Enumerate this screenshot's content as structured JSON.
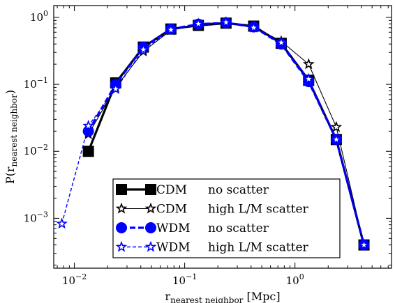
{
  "chart_data": {
    "type": "line",
    "xscale": "log",
    "yscale": "log",
    "xlim": [
      0.0065,
      7.5
    ],
    "ylim": [
      0.00018,
      1.5
    ],
    "xlabel": {
      "main": "r",
      "sub": "nearest neighbor",
      "tail": " [Mpc]"
    },
    "ylabel": {
      "main": "P(r",
      "sub": "nearest neighbor",
      "tail": ")"
    },
    "x_ticks": [
      {
        "value": 0.01,
        "base": "10",
        "exp": "−2"
      },
      {
        "value": 0.1,
        "base": "10",
        "exp": "−1"
      },
      {
        "value": 1,
        "base": "10",
        "exp": "0"
      }
    ],
    "y_ticks": [
      {
        "value": 0.001,
        "base": "10",
        "exp": "−3"
      },
      {
        "value": 0.01,
        "base": "10",
        "exp": "−2"
      },
      {
        "value": 0.1,
        "base": "10",
        "exp": "−1"
      },
      {
        "value": 1,
        "base": "10",
        "exp": "0"
      }
    ],
    "legend_position": "bottom-center",
    "series": [
      {
        "name": "CDM   no scatter",
        "color": "#000000",
        "marker": "square",
        "line": "solid-thick",
        "x": [
          0.0134,
          0.0237,
          0.0422,
          0.075,
          0.133,
          0.237,
          0.422,
          0.75,
          1.33,
          2.37,
          4.22
        ],
        "y": [
          0.01,
          0.105,
          0.36,
          0.67,
          0.76,
          0.82,
          0.74,
          0.41,
          0.115,
          0.015,
          0.0004
        ]
      },
      {
        "name": "CDM   high L/M scatter",
        "color": "#000000",
        "marker": "star",
        "line": "solid-thin",
        "x": [
          0.0134,
          0.0237,
          0.0422,
          0.075,
          0.133,
          0.237,
          0.422,
          0.75,
          1.33,
          2.37,
          4.22
        ],
        "y": [
          0.018,
          0.09,
          0.31,
          0.64,
          0.79,
          0.84,
          0.72,
          0.44,
          0.2,
          0.023,
          0.0004
        ]
      },
      {
        "name": "WDM   no scatter",
        "color": "#0000ff",
        "marker": "circle",
        "line": "dashed-thick",
        "x": [
          0.0134,
          0.0237,
          0.0422,
          0.075,
          0.133,
          0.237,
          0.422,
          0.75,
          1.33,
          2.37,
          4.22
        ],
        "y": [
          0.02,
          0.1,
          0.36,
          0.67,
          0.79,
          0.83,
          0.72,
          0.4,
          0.11,
          0.015,
          0.0004
        ]
      },
      {
        "name": "WDM   high L/M scatter",
        "color": "#0000ff",
        "marker": "star",
        "line": "dashed-thin",
        "x": [
          0.0077,
          0.0134,
          0.0237,
          0.0422,
          0.075,
          0.133,
          0.237,
          0.422,
          0.75,
          1.33,
          2.37,
          4.22
        ],
        "y": [
          0.00083,
          0.024,
          0.085,
          0.33,
          0.65,
          0.8,
          0.84,
          0.7,
          0.42,
          0.12,
          0.015,
          0.0004
        ]
      }
    ]
  }
}
